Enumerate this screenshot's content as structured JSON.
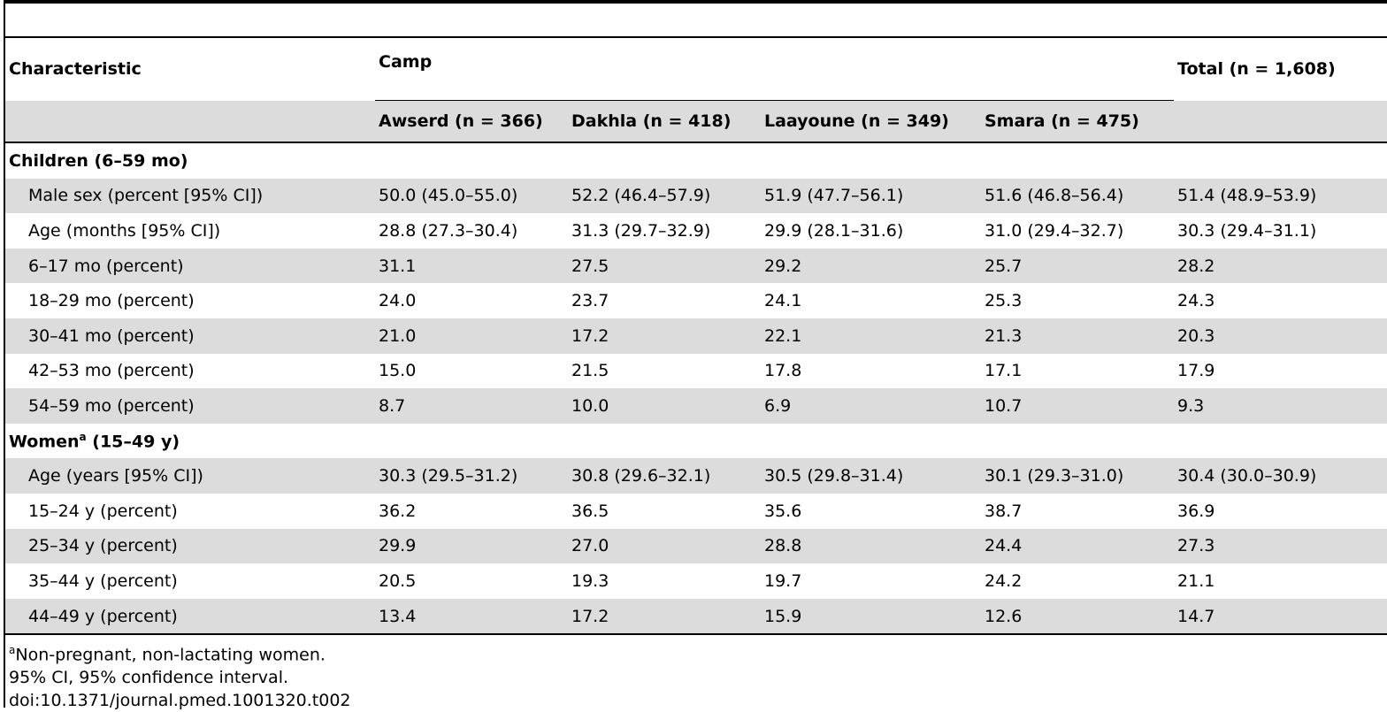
{
  "table": {
    "header": {
      "characteristic": "Characteristic",
      "camp": "Camp",
      "total": "Total (n = 1,608)",
      "camps": [
        "Awserd (n = 366)",
        "Dakhla (n = 418)",
        "Laayoune (n = 349)",
        "Smara (n = 475)"
      ]
    },
    "groups": [
      {
        "label": "Children (6–59 mo)",
        "rows": [
          {
            "label": "Male sex (percent [95% CI])",
            "values": [
              "50.0 (45.0–55.0)",
              "52.2 (46.4–57.9)",
              "51.9 (47.7–56.1)",
              "51.6 (46.8–56.4)",
              "51.4 (48.9–53.9)"
            ]
          },
          {
            "label": "Age (months [95% CI])",
            "values": [
              "28.8 (27.3–30.4)",
              "31.3 (29.7–32.9)",
              "29.9 (28.1–31.6)",
              "31.0 (29.4–32.7)",
              "30.3 (29.4–31.1)"
            ]
          },
          {
            "label": "6–17 mo (percent)",
            "values": [
              "31.1",
              "27.5",
              "29.2",
              "25.7",
              "28.2"
            ]
          },
          {
            "label": "18–29 mo (percent)",
            "values": [
              "24.0",
              "23.7",
              "24.1",
              "25.3",
              "24.3"
            ]
          },
          {
            "label": "30–41 mo (percent)",
            "values": [
              "21.0",
              "17.2",
              "22.1",
              "21.3",
              "20.3"
            ]
          },
          {
            "label": "42–53 mo (percent)",
            "values": [
              "15.0",
              "21.5",
              "17.8",
              "17.1",
              "17.9"
            ]
          },
          {
            "label": "54–59 mo (percent)",
            "values": [
              "8.7",
              "10.0",
              "6.9",
              "10.7",
              "9.3"
            ]
          }
        ]
      },
      {
        "label_prefix": "Women",
        "label_sup": "a",
        "label_suffix": " (15–49 y)",
        "rows": [
          {
            "label": "Age (years [95% CI])",
            "values": [
              "30.3 (29.5–31.2)",
              "30.8 (29.6–32.1)",
              "30.5 (29.8–31.4)",
              "30.1 (29.3–31.0)",
              "30.4 (30.0–30.9)"
            ]
          },
          {
            "label": "15–24 y (percent)",
            "values": [
              "36.2",
              "36.5",
              "35.6",
              "38.7",
              "36.9"
            ]
          },
          {
            "label": "25–34 y (percent)",
            "values": [
              "29.9",
              "27.0",
              "28.8",
              "24.4",
              "27.3"
            ]
          },
          {
            "label": "35–44 y (percent)",
            "values": [
              "20.5",
              "19.3",
              "19.7",
              "24.2",
              "21.1"
            ]
          },
          {
            "label": "44–49 y (percent)",
            "values": [
              "13.4",
              "17.2",
              "15.9",
              "12.6",
              "14.7"
            ]
          }
        ]
      }
    ]
  },
  "footnotes": {
    "note_a_sup": "a",
    "note_a": "Non-pregnant, non-lactating women.",
    "ci": "95% CI, 95% confidence interval.",
    "doi": "doi:10.1371/journal.pmed.1001320.t002"
  }
}
